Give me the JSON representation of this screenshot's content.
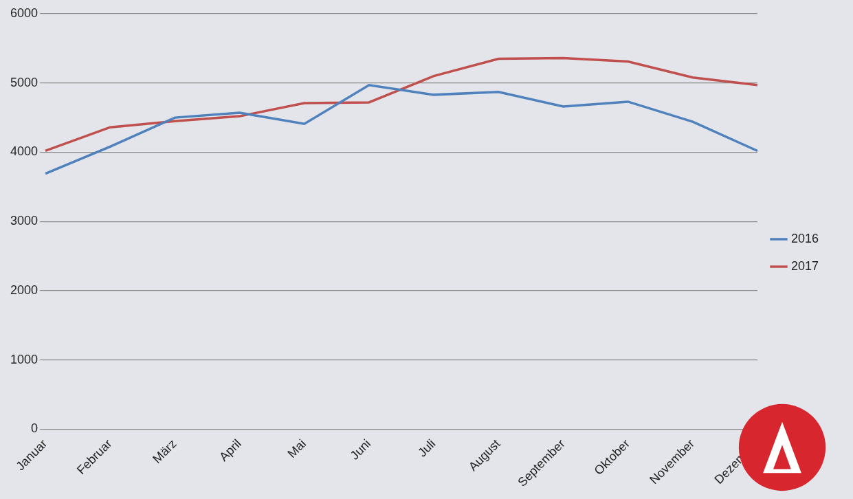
{
  "chart_data": {
    "type": "line",
    "categories": [
      "Januar",
      "Februar",
      "März",
      "April",
      "Mai",
      "Juni",
      "Juli",
      "August",
      "September",
      "Oktober",
      "November",
      "Dezember"
    ],
    "series": [
      {
        "name": "2016",
        "color": "#4f81bd",
        "values": [
          3690,
          4080,
          4500,
          4570,
          4410,
          4970,
          4830,
          4870,
          4660,
          4730,
          4440,
          4020
        ]
      },
      {
        "name": "2017",
        "color": "#c0504d",
        "values": [
          4020,
          4360,
          4450,
          4520,
          4710,
          4720,
          5100,
          5350,
          5360,
          5310,
          5080,
          4970
        ]
      }
    ],
    "ylim": [
      0,
      6000
    ],
    "yticks": [
      0,
      1000,
      2000,
      3000,
      4000,
      5000,
      6000
    ],
    "grid": true,
    "legend": "right"
  }
}
